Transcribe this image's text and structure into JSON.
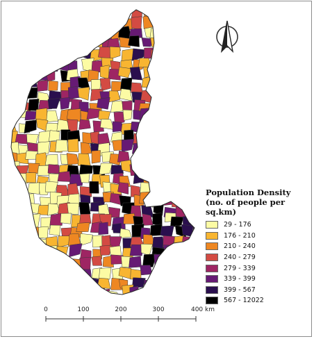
{
  "legend": {
    "title": "Population Density",
    "subtitle": "(no. of people per sq.km)",
    "classes": [
      {
        "label": "29 - 176",
        "color": "#fcfba4"
      },
      {
        "label": "176 - 210",
        "color": "#f8b531"
      },
      {
        "label": "210 - 240",
        "color": "#ee8722"
      },
      {
        "label": "240 - 279",
        "color": "#d34b43"
      },
      {
        "label": "279 - 339",
        "color": "#9e2563"
      },
      {
        "label": "339 - 399",
        "color": "#661a74"
      },
      {
        "label": "399 - 567",
        "color": "#2a0f4e"
      },
      {
        "label": "567 - 12022",
        "color": "#000000"
      }
    ]
  },
  "scale_bar": {
    "ticks": [
      "0",
      "100",
      "200",
      "300",
      "400 km"
    ]
  },
  "north_arrow": {
    "icon": "north-arrow-icon"
  },
  "colors": {
    "boundary": "#3a3a3a",
    "frame": "#8c8c8c"
  }
}
